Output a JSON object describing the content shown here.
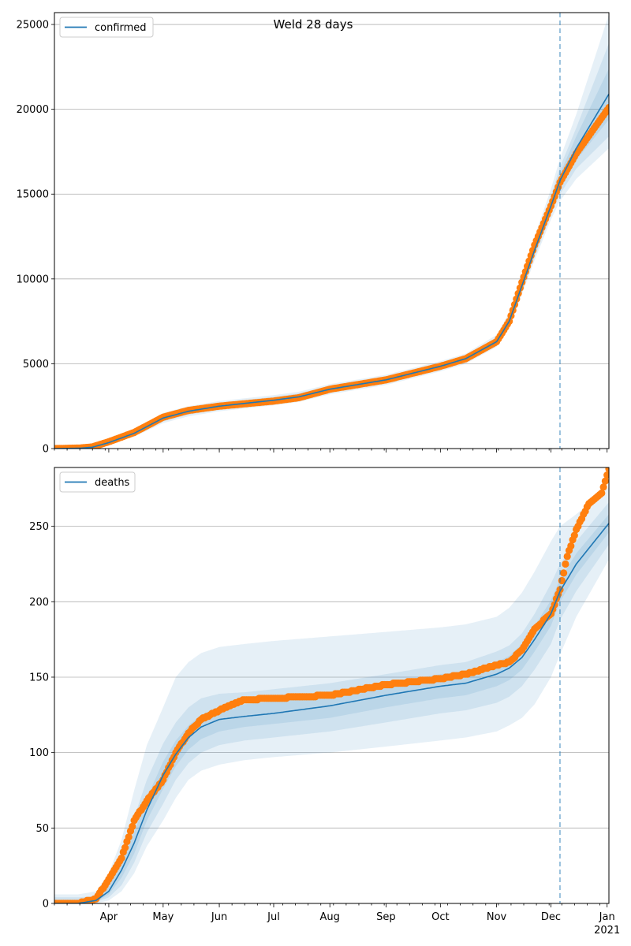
{
  "title": "Weld 28 days",
  "colors": {
    "model": "#1f77b4",
    "observed": "#ff7f0e",
    "band": "#1f77b4",
    "grid": "#b0b0b0"
  },
  "chart_data": [
    {
      "type": "line",
      "name": "confirmed-panel",
      "title": "Weld 28 days",
      "xlabel": "",
      "ylabel": "",
      "xlim": [
        "2020-03-02",
        "2021-01-02"
      ],
      "ylim": [
        0,
        25700
      ],
      "yticks": [
        0,
        5000,
        10000,
        15000,
        20000,
        25000
      ],
      "ytick_labels": [
        "0",
        "5000",
        "10000",
        "15000",
        "20000",
        "25000"
      ],
      "grid": "horizontal",
      "legend": {
        "placement": "top-left",
        "entries": [
          "confirmed"
        ]
      },
      "forecast_start": "2020-12-06",
      "series": [
        {
          "name": "confirmed",
          "kind": "model-median",
          "x": [
            "2020-03-02",
            "2020-03-16",
            "2020-03-23",
            "2020-04-01",
            "2020-04-15",
            "2020-05-01",
            "2020-05-15",
            "2020-06-01",
            "2020-07-01",
            "2020-07-15",
            "2020-08-01",
            "2020-09-01",
            "2020-10-01",
            "2020-10-15",
            "2020-11-01",
            "2020-11-08",
            "2020-11-15",
            "2020-11-22",
            "2020-12-01",
            "2020-12-06",
            "2020-12-15",
            "2021-01-02"
          ],
          "values": [
            0,
            20,
            80,
            350,
            900,
            1800,
            2200,
            2500,
            2850,
            3050,
            3500,
            4050,
            4850,
            5300,
            6300,
            7500,
            9600,
            11700,
            14300,
            15800,
            17700,
            20900
          ]
        },
        {
          "name": "observed confirmed",
          "kind": "points",
          "x": [
            "2020-03-02",
            "2020-03-16",
            "2020-03-23",
            "2020-04-01",
            "2020-04-15",
            "2020-05-01",
            "2020-05-15",
            "2020-06-01",
            "2020-07-01",
            "2020-07-15",
            "2020-08-01",
            "2020-09-01",
            "2020-10-01",
            "2020-10-15",
            "2020-11-01",
            "2020-11-08",
            "2020-11-15",
            "2020-11-22",
            "2020-12-01",
            "2020-12-06",
            "2020-12-15",
            "2021-01-02"
          ],
          "values": [
            0,
            30,
            100,
            400,
            950,
            1850,
            2250,
            2500,
            2800,
            3000,
            3500,
            4050,
            4850,
            5300,
            6300,
            7500,
            9800,
            12000,
            14300,
            15700,
            17400,
            20100
          ]
        }
      ],
      "bands": [
        {
          "lower": [
            0,
            5,
            40,
            250,
            700,
            1500,
            1900,
            2200,
            2550,
            2750,
            3200,
            3750,
            4550,
            5000,
            6000,
            7100,
            9100,
            11100,
            13500,
            14600,
            15900,
            17700
          ],
          "upper": [
            60,
            60,
            150,
            450,
            1100,
            2100,
            2500,
            2800,
            3150,
            3350,
            3800,
            4350,
            5150,
            5600,
            6700,
            8000,
            10200,
            12500,
            15300,
            17100,
            19700,
            25600
          ]
        },
        {
          "lower": [
            0,
            10,
            55,
            280,
            760,
            1600,
            2000,
            2300,
            2650,
            2850,
            3300,
            3850,
            4650,
            5100,
            6100,
            7250,
            9250,
            11300,
            13800,
            15000,
            16500,
            18400
          ],
          "upper": [
            40,
            40,
            120,
            420,
            1040,
            2000,
            2400,
            2700,
            3050,
            3250,
            3700,
            4250,
            5050,
            5500,
            6550,
            7800,
            10000,
            12200,
            14900,
            16600,
            18900,
            23900
          ]
        },
        {
          "lower": [
            0,
            14,
            65,
            310,
            820,
            1690,
            2090,
            2390,
            2740,
            2940,
            3390,
            3940,
            4740,
            5190,
            6180,
            7370,
            9420,
            11500,
            14050,
            15380,
            17000,
            19400
          ],
          "upper": [
            20,
            28,
            100,
            390,
            980,
            1910,
            2310,
            2610,
            2960,
            3160,
            3610,
            4160,
            4960,
            5410,
            6420,
            7630,
            9780,
            11900,
            14550,
            16220,
            18400,
            22400
          ]
        }
      ]
    },
    {
      "type": "line",
      "name": "deaths-panel",
      "title": "",
      "xlabel": "",
      "ylabel": "",
      "xlim": [
        "2020-03-02",
        "2021-01-02"
      ],
      "ylim": [
        0,
        289
      ],
      "yticks": [
        0,
        50,
        100,
        150,
        200,
        250
      ],
      "ytick_labels": [
        "0",
        "50",
        "100",
        "150",
        "200",
        "250"
      ],
      "grid": "horizontal",
      "legend": {
        "placement": "top-left",
        "entries": [
          "deaths"
        ]
      },
      "forecast_start": "2020-12-06",
      "xticks": [
        {
          "date": "2020-04-01",
          "label": "Apr"
        },
        {
          "date": "2020-05-01",
          "label": "May"
        },
        {
          "date": "2020-06-01",
          "label": "Jun"
        },
        {
          "date": "2020-07-01",
          "label": "Jul"
        },
        {
          "date": "2020-08-01",
          "label": "Aug"
        },
        {
          "date": "2020-09-01",
          "label": "Sep"
        },
        {
          "date": "2020-10-01",
          "label": "Oct"
        },
        {
          "date": "2020-11-01",
          "label": "Nov"
        },
        {
          "date": "2020-12-01",
          "label": "Dec"
        },
        {
          "date": "2021-01-01",
          "label": "Jan",
          "sublabel": "2021"
        }
      ],
      "series": [
        {
          "name": "deaths",
          "kind": "model-median",
          "x": [
            "2020-03-02",
            "2020-03-15",
            "2020-03-25",
            "2020-04-01",
            "2020-04-08",
            "2020-04-15",
            "2020-04-22",
            "2020-05-01",
            "2020-05-08",
            "2020-05-15",
            "2020-05-22",
            "2020-06-01",
            "2020-06-15",
            "2020-07-01",
            "2020-08-01",
            "2020-09-01",
            "2020-10-01",
            "2020-10-15",
            "2020-11-01",
            "2020-11-08",
            "2020-11-15",
            "2020-11-22",
            "2020-12-01",
            "2020-12-06",
            "2020-12-15",
            "2021-01-02"
          ],
          "values": [
            0,
            0,
            2,
            8,
            22,
            40,
            62,
            85,
            99,
            110,
            117,
            122,
            124,
            126,
            131,
            138,
            144,
            146,
            152,
            156,
            163,
            175,
            192,
            207,
            225,
            252
          ]
        },
        {
          "name": "observed deaths",
          "kind": "points",
          "x": [
            "2020-03-02",
            "2020-03-15",
            "2020-03-25",
            "2020-04-01",
            "2020-04-08",
            "2020-04-15",
            "2020-04-22",
            "2020-05-01",
            "2020-05-08",
            "2020-05-15",
            "2020-05-22",
            "2020-06-01",
            "2020-06-15",
            "2020-07-01",
            "2020-08-01",
            "2020-09-01",
            "2020-10-01",
            "2020-10-15",
            "2020-11-01",
            "2020-11-08",
            "2020-11-15",
            "2020-11-22",
            "2020-12-01",
            "2020-12-06",
            "2020-12-10",
            "2020-12-15",
            "2020-12-22",
            "2020-12-29",
            "2021-01-02"
          ],
          "values": [
            0,
            0,
            3,
            16,
            30,
            55,
            68,
            82,
            100,
            113,
            122,
            128,
            135,
            136,
            138,
            145,
            149,
            152,
            158,
            160,
            168,
            182,
            192,
            208,
            230,
            248,
            265,
            272,
            288
          ]
        }
      ],
      "bands": [
        {
          "lower": [
            0,
            0,
            0,
            2,
            8,
            20,
            38,
            55,
            70,
            82,
            88,
            92,
            95,
            97,
            100,
            104,
            108,
            110,
            114,
            118,
            123,
            132,
            150,
            165,
            190,
            228
          ],
          "upper": [
            6,
            6,
            8,
            20,
            42,
            75,
            105,
            130,
            150,
            160,
            166,
            170,
            172,
            174,
            177,
            180,
            183,
            185,
            190,
            196,
            206,
            220,
            240,
            250,
            258,
            276
          ]
        },
        {
          "lower": [
            0,
            0,
            1,
            4,
            12,
            27,
            47,
            66,
            82,
            93,
            100,
            105,
            108,
            110,
            114,
            120,
            126,
            128,
            133,
            137,
            144,
            155,
            172,
            188,
            207,
            238
          ],
          "upper": [
            4,
            4,
            5,
            15,
            33,
            57,
            82,
            106,
            120,
            130,
            136,
            139,
            140,
            142,
            146,
            152,
            158,
            160,
            167,
            171,
            179,
            192,
            212,
            225,
            240,
            266
          ]
        },
        {
          "lower": [
            0,
            0,
            1,
            6,
            17,
            33,
            55,
            76,
            91,
            102,
            109,
            114,
            117,
            119,
            123,
            130,
            136,
            138,
            144,
            148,
            155,
            167,
            184,
            200,
            218,
            246
          ],
          "upper": [
            2,
            2,
            3,
            11,
            27,
            47,
            70,
            94,
            108,
            118,
            125,
            130,
            132,
            134,
            139,
            146,
            152,
            154,
            160,
            164,
            172,
            184,
            201,
            215,
            232,
            258
          ]
        }
      ]
    }
  ]
}
